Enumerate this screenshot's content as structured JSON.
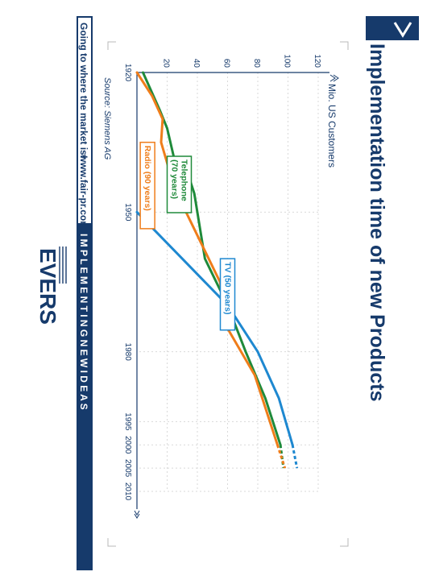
{
  "page": {
    "title": "Implementation time of new Products",
    "chevron_icon": "chevron-right-icon",
    "footer_slogan": "Going to where the market is!",
    "footer_url": "www.fair-pr.com",
    "footer_banner": "I M P L E M E N T I N G   N E W   I D E A S",
    "logo_text": "EVERS",
    "colors": {
      "navy": "#163a6b",
      "telephone": "#1f8a3a",
      "radio": "#ef7d1a",
      "tv": "#1e88d0",
      "grid": "#d9d9d9"
    }
  },
  "chart_data": {
    "type": "line",
    "title": "Implementation time of new Products",
    "ylabel": "Mio. US Customers",
    "xlabel": "",
    "source": "Source: Siemens AG",
    "x_ticks": [
      1920,
      1950,
      1980,
      1995,
      2000,
      2005,
      2010
    ],
    "y_ticks": [
      20,
      40,
      60,
      80,
      100,
      120
    ],
    "xlim": [
      1920,
      2010
    ],
    "ylim": [
      0,
      120
    ],
    "grid": true,
    "series": [
      {
        "name": "Telephone (70 years)",
        "color": "#1f8a3a",
        "x": [
          1920,
          1928,
          1932,
          1939,
          1943,
          1946,
          1960,
          1970,
          1980,
          1990,
          2000
        ],
        "y": [
          4,
          15,
          20,
          25,
          35,
          38,
          45,
          60,
          72,
          85,
          95
        ],
        "projection_x": [
          2000,
          2005
        ],
        "projection_y": [
          95,
          97
        ],
        "label_anchor_year": 1938,
        "label_anchor_value": 28
      },
      {
        "name": "Radio (90 years)",
        "color": "#ef7d1a",
        "x": [
          1920,
          1925,
          1930,
          1935,
          1945,
          1955,
          1965,
          1975,
          1985,
          1990,
          2000
        ],
        "y": [
          0,
          10,
          17,
          16,
          25,
          40,
          55,
          60,
          78,
          83,
          93
        ],
        "projection_x": [
          2000,
          2005
        ],
        "projection_y": [
          93,
          98
        ],
        "label_anchor_year": 1935,
        "label_anchor_value": 7
      },
      {
        "name": "TV (50 years)",
        "color": "#1e88d0",
        "x": [
          1950,
          1960,
          1970,
          1980,
          1990,
          2000
        ],
        "y": [
          0,
          30,
          60,
          80,
          94,
          103
        ],
        "projection_x": [
          2000,
          2005
        ],
        "projection_y": [
          103,
          106
        ],
        "label_anchor_year": 1960,
        "label_anchor_value": 60
      }
    ]
  }
}
